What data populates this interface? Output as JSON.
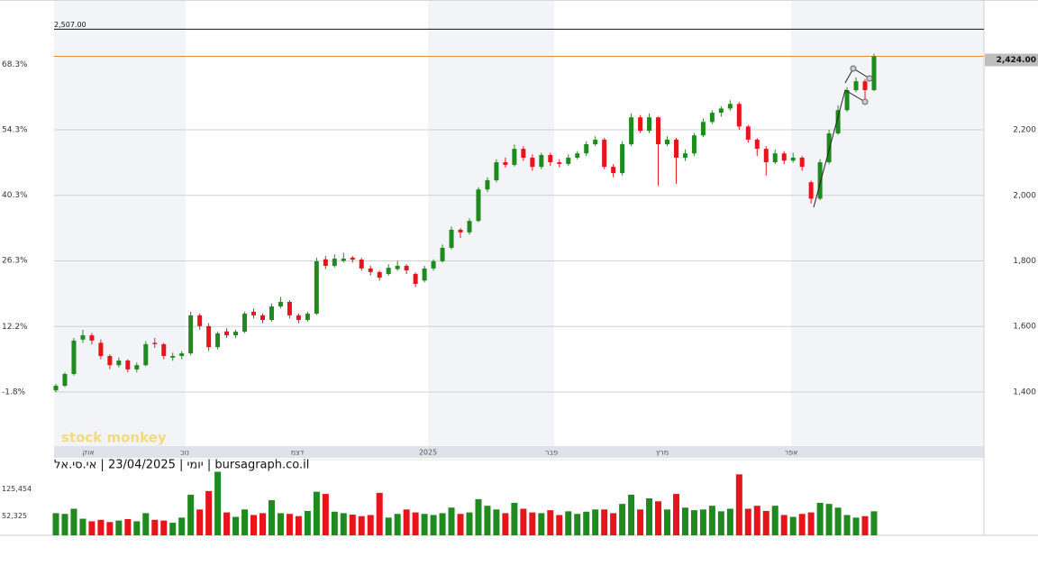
{
  "chart_data": {
    "type": "candlestick",
    "source_label": "יומי | 23/04/2025 | אי.סי.אל | bursagraph.co.il",
    "watermark": "stock monkey",
    "up_color": "#1f8a1f",
    "down_color": "#e8141c",
    "ohlc": [
      [
        1405,
        1425,
        1400,
        1419
      ],
      [
        1419,
        1460,
        1415,
        1455
      ],
      [
        1455,
        1565,
        1450,
        1557
      ],
      [
        1560,
        1590,
        1550,
        1573
      ],
      [
        1573,
        1580,
        1545,
        1557
      ],
      [
        1550,
        1560,
        1500,
        1510
      ],
      [
        1510,
        1515,
        1470,
        1482
      ],
      [
        1482,
        1505,
        1475,
        1496
      ],
      [
        1496,
        1500,
        1460,
        1469
      ],
      [
        1469,
        1490,
        1460,
        1482
      ],
      [
        1482,
        1555,
        1478,
        1546
      ],
      [
        1550,
        1565,
        1535,
        1546
      ],
      [
        1546,
        1550,
        1500,
        1510
      ],
      [
        1505,
        1520,
        1495,
        1510
      ],
      [
        1510,
        1525,
        1500,
        1518
      ],
      [
        1518,
        1645,
        1512,
        1634
      ],
      [
        1634,
        1640,
        1590,
        1601
      ],
      [
        1601,
        1610,
        1525,
        1537
      ],
      [
        1537,
        1585,
        1530,
        1579
      ],
      [
        1585,
        1595,
        1565,
        1573
      ],
      [
        1573,
        1590,
        1565,
        1584
      ],
      [
        1584,
        1645,
        1580,
        1639
      ],
      [
        1645,
        1655,
        1625,
        1634
      ],
      [
        1634,
        1640,
        1610,
        1620
      ],
      [
        1620,
        1670,
        1615,
        1661
      ],
      [
        1661,
        1690,
        1655,
        1675
      ],
      [
        1675,
        1680,
        1625,
        1634
      ],
      [
        1634,
        1640,
        1610,
        1620
      ],
      [
        1620,
        1645,
        1615,
        1639
      ],
      [
        1639,
        1810,
        1635,
        1799
      ],
      [
        1805,
        1815,
        1775,
        1785
      ],
      [
        1785,
        1820,
        1780,
        1807
      ],
      [
        1800,
        1825,
        1795,
        1807
      ],
      [
        1810,
        1815,
        1795,
        1804
      ],
      [
        1804,
        1810,
        1770,
        1777
      ],
      [
        1777,
        1785,
        1755,
        1766
      ],
      [
        1766,
        1770,
        1740,
        1749
      ],
      [
        1760,
        1790,
        1755,
        1779
      ],
      [
        1775,
        1800,
        1770,
        1785
      ],
      [
        1785,
        1790,
        1760,
        1771
      ],
      [
        1760,
        1765,
        1720,
        1730
      ],
      [
        1740,
        1785,
        1735,
        1777
      ],
      [
        1777,
        1805,
        1770,
        1799
      ],
      [
        1799,
        1850,
        1795,
        1840
      ],
      [
        1840,
        1905,
        1835,
        1895
      ],
      [
        1895,
        1900,
        1870,
        1887
      ],
      [
        1887,
        1930,
        1880,
        1922
      ],
      [
        1922,
        2025,
        1918,
        2018
      ],
      [
        2018,
        2055,
        2010,
        2046
      ],
      [
        2046,
        2110,
        2040,
        2101
      ],
      [
        2101,
        2115,
        2085,
        2093
      ],
      [
        2093,
        2155,
        2088,
        2142
      ],
      [
        2142,
        2150,
        2105,
        2115
      ],
      [
        2115,
        2125,
        2075,
        2087
      ],
      [
        2087,
        2130,
        2080,
        2123
      ],
      [
        2123,
        2130,
        2090,
        2101
      ],
      [
        2101,
        2110,
        2085,
        2096
      ],
      [
        2096,
        2125,
        2090,
        2115
      ],
      [
        2115,
        2135,
        2110,
        2128
      ],
      [
        2128,
        2165,
        2120,
        2156
      ],
      [
        2156,
        2180,
        2150,
        2170
      ],
      [
        2170,
        2175,
        2080,
        2087
      ],
      [
        2087,
        2095,
        2055,
        2068
      ],
      [
        2068,
        2165,
        2060,
        2156
      ],
      [
        2156,
        2250,
        2150,
        2238
      ],
      [
        2238,
        2245,
        2190,
        2197
      ],
      [
        2197,
        2250,
        2190,
        2238
      ],
      [
        2238,
        2240,
        2030,
        2156
      ],
      [
        2156,
        2180,
        2150,
        2170
      ],
      [
        2170,
        2175,
        2035,
        2115
      ],
      [
        2115,
        2140,
        2105,
        2128
      ],
      [
        2128,
        2190,
        2120,
        2183
      ],
      [
        2183,
        2235,
        2178,
        2224
      ],
      [
        2224,
        2260,
        2218,
        2252
      ],
      [
        2252,
        2272,
        2240,
        2265
      ],
      [
        2265,
        2290,
        2258,
        2279
      ],
      [
        2279,
        2285,
        2200,
        2210
      ],
      [
        2210,
        2215,
        2160,
        2170
      ],
      [
        2170,
        2175,
        2120,
        2142
      ],
      [
        2142,
        2150,
        2060,
        2101
      ],
      [
        2101,
        2140,
        2095,
        2128
      ],
      [
        2128,
        2135,
        2095,
        2106
      ],
      [
        2106,
        2130,
        2100,
        2115
      ],
      [
        2115,
        2120,
        2075,
        2087
      ],
      [
        2040,
        2045,
        1975,
        1990
      ],
      [
        1990,
        2110,
        1985,
        2101
      ],
      [
        2101,
        2200,
        2095,
        2189
      ],
      [
        2189,
        2275,
        2185,
        2260
      ],
      [
        2260,
        2330,
        2255,
        2321
      ],
      [
        2321,
        2360,
        2315,
        2348
      ],
      [
        2348,
        2355,
        2290,
        2321
      ],
      [
        2321,
        2432,
        2318,
        2424
      ]
    ],
    "ylim": [
      1235,
      2596
    ],
    "yticks": [
      {
        "value": 1400,
        "label": "1,400"
      },
      {
        "value": 1600,
        "label": "1,600"
      },
      {
        "value": 1800,
        "label": "1,800"
      },
      {
        "value": 2000,
        "label": "2,000"
      },
      {
        "value": 2200,
        "label": "2,200"
      }
    ],
    "y2lim": [
      -13.4,
      82.1
    ],
    "y2ticks": [
      {
        "value": -1.8,
        "label": "-1.8%"
      },
      {
        "value": 12.2,
        "label": "12.2%"
      },
      {
        "value": 26.3,
        "label": "26.3%"
      },
      {
        "value": 40.3,
        "label": "40.3%"
      },
      {
        "value": 54.3,
        "label": "54.3%"
      },
      {
        "value": 68.3,
        "label": "68.3%"
      }
    ],
    "reference_lines": [
      {
        "value": 2507,
        "label": "2,507.00",
        "color": "#111111"
      },
      {
        "value": 2424,
        "label": "2,424.00",
        "color": "#e0902c"
      }
    ],
    "x_labels": [
      "אוק",
      "נוב",
      "דצמ",
      "2025",
      "פבר",
      "מרץ",
      "אפר"
    ],
    "volume": {
      "values": [
        60000,
        58000,
        72000,
        45000,
        38000,
        42000,
        36000,
        40000,
        44000,
        38000,
        60000,
        42000,
        40000,
        34000,
        48000,
        110000,
        70000,
        120000,
        172000,
        62000,
        50000,
        70000,
        55000,
        60000,
        95000,
        60000,
        58000,
        52000,
        66000,
        118000,
        112000,
        64000,
        60000,
        56000,
        52000,
        55000,
        115000,
        48000,
        58000,
        70000,
        62000,
        58000,
        55000,
        60000,
        75000,
        58000,
        62000,
        98000,
        80000,
        70000,
        60000,
        88000,
        72000,
        62000,
        60000,
        68000,
        55000,
        65000,
        58000,
        64000,
        70000,
        70000,
        60000,
        85000,
        110000,
        70000,
        100000,
        92000,
        70000,
        112000,
        75000,
        68000,
        70000,
        80000,
        65000,
        72000,
        165000,
        72000,
        80000,
        66000,
        80000,
        55000,
        50000,
        58000,
        62000,
        88000,
        85000,
        75000,
        55000,
        48000,
        52000,
        65000
      ],
      "ylim": [
        0,
        200000
      ],
      "yticks": [
        {
          "value": 52325,
          "label": "52,325"
        },
        {
          "value": 125454,
          "label": "125,454"
        }
      ]
    }
  }
}
